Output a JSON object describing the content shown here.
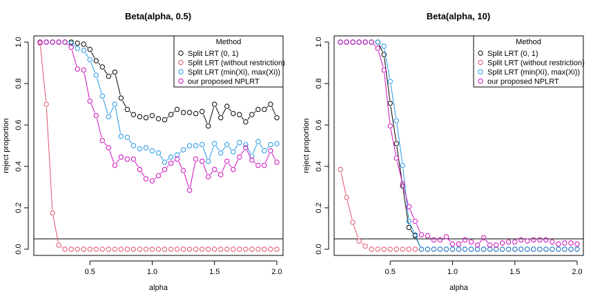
{
  "chart_data": [
    {
      "type": "scatter",
      "title": "Beta(alpha, 0.5)",
      "xlabel": "alpha",
      "ylabel": "reject proportion",
      "xlim": [
        0.05,
        2.05
      ],
      "ylim": [
        -0.03,
        1.03
      ],
      "xticks": [
        0.5,
        1.0,
        1.5,
        2.0
      ],
      "xtick_labels": [
        "0.5",
        "1.0",
        "1.5",
        "2.0"
      ],
      "yticks": [
        0.0,
        0.2,
        0.4,
        0.6,
        0.8,
        1.0
      ],
      "ytick_labels": [
        "0.0",
        "0.2",
        "0.4",
        "0.6",
        "0.8",
        "1.0"
      ],
      "hline": 0.05,
      "legend": {
        "title": "Method",
        "position": "top-right"
      },
      "x": [
        0.1,
        0.15,
        0.2,
        0.25,
        0.3,
        0.35,
        0.4,
        0.45,
        0.5,
        0.55,
        0.6,
        0.65,
        0.7,
        0.75,
        0.8,
        0.85,
        0.9,
        0.95,
        1.0,
        1.05,
        1.1,
        1.15,
        1.2,
        1.25,
        1.3,
        1.35,
        1.4,
        1.45,
        1.5,
        1.55,
        1.6,
        1.65,
        1.7,
        1.75,
        1.8,
        1.85,
        1.9,
        1.95,
        2.0
      ],
      "series": [
        {
          "name": "Split LRT (0, 1)",
          "color": "#000000",
          "values": [
            1.0,
            1.0,
            1.0,
            1.0,
            1.0,
            1.0,
            0.995,
            0.99,
            0.965,
            0.91,
            0.88,
            0.835,
            0.855,
            0.73,
            0.675,
            0.65,
            0.64,
            0.635,
            0.645,
            0.63,
            0.625,
            0.65,
            0.675,
            0.66,
            0.66,
            0.655,
            0.665,
            0.595,
            0.7,
            0.635,
            0.69,
            0.655,
            0.65,
            0.615,
            0.65,
            0.675,
            0.675,
            0.7,
            0.635
          ]
        },
        {
          "name": "Split LRT (without restriction)",
          "color": "#DF536B",
          "values": [
            0.995,
            0.7,
            0.175,
            0.02,
            0.0,
            0.0,
            0.0,
            0.0,
            0.0,
            0.0,
            0.0,
            0.0,
            0.0,
            0.0,
            0.0,
            0.0,
            0.0,
            0.0,
            0.0,
            0.0,
            0.0,
            0.0,
            0.0,
            0.0,
            0.0,
            0.0,
            0.0,
            0.0,
            0.0,
            0.0,
            0.0,
            0.0,
            0.0,
            0.0,
            0.0,
            0.0,
            0.0,
            0.0,
            0.0
          ]
        },
        {
          "name": "Split LRT (min(Xi), max(Xi))",
          "color": "#2297E6",
          "values": [
            1.0,
            1.0,
            1.0,
            1.0,
            1.0,
            0.995,
            0.97,
            0.96,
            0.915,
            0.84,
            0.74,
            0.64,
            0.7,
            0.545,
            0.54,
            0.5,
            0.485,
            0.49,
            0.475,
            0.465,
            0.42,
            0.445,
            0.455,
            0.48,
            0.5,
            0.5,
            0.505,
            0.425,
            0.51,
            0.465,
            0.505,
            0.47,
            0.515,
            0.505,
            0.45,
            0.52,
            0.475,
            0.505,
            0.51
          ]
        },
        {
          "name": "our proposed NPLRT",
          "color": "#CD0BBC",
          "values": [
            1.0,
            1.0,
            1.0,
            1.0,
            1.0,
            0.975,
            0.87,
            0.865,
            0.715,
            0.645,
            0.525,
            0.49,
            0.405,
            0.445,
            0.435,
            0.435,
            0.385,
            0.34,
            0.33,
            0.355,
            0.385,
            0.415,
            0.435,
            0.38,
            0.285,
            0.435,
            0.425,
            0.35,
            0.385,
            0.36,
            0.425,
            0.385,
            0.445,
            0.49,
            0.43,
            0.405,
            0.405,
            0.475,
            0.42
          ]
        }
      ]
    },
    {
      "type": "scatter",
      "title": "Beta(alpha, 10)",
      "xlabel": "alpha",
      "ylabel": "reject proportion",
      "xlim": [
        0.05,
        2.05
      ],
      "ylim": [
        -0.03,
        1.03
      ],
      "xticks": [
        0.5,
        1.0,
        1.5,
        2.0
      ],
      "xtick_labels": [
        "0.5",
        "1.0",
        "1.5",
        "2.0"
      ],
      "yticks": [
        0.0,
        0.2,
        0.4,
        0.6,
        0.8,
        1.0
      ],
      "ytick_labels": [
        "0.0",
        "0.2",
        "0.4",
        "0.6",
        "0.8",
        "1.0"
      ],
      "hline": 0.05,
      "legend": {
        "title": "Method",
        "position": "top-right"
      },
      "x": [
        0.1,
        0.15,
        0.2,
        0.25,
        0.3,
        0.35,
        0.4,
        0.45,
        0.5,
        0.55,
        0.6,
        0.65,
        0.7,
        0.75,
        0.8,
        0.85,
        0.9,
        0.95,
        1.0,
        1.05,
        1.1,
        1.15,
        1.2,
        1.25,
        1.3,
        1.35,
        1.4,
        1.45,
        1.5,
        1.55,
        1.6,
        1.65,
        1.7,
        1.75,
        1.8,
        1.85,
        1.9,
        1.95,
        2.0
      ],
      "series": [
        {
          "name": "Split LRT (0, 1)",
          "color": "#000000",
          "values": [
            1.0,
            1.0,
            1.0,
            1.0,
            1.0,
            1.0,
            1.0,
            0.94,
            0.705,
            0.51,
            0.305,
            0.105,
            0.065,
            0.0,
            0.0,
            0.0,
            0.0,
            0.0,
            0.0,
            0.0,
            0.0,
            0.0,
            0.0,
            0.0,
            0.0,
            0.0,
            0.0,
            0.0,
            0.0,
            0.0,
            0.0,
            0.0,
            0.0,
            0.0,
            0.0,
            0.0,
            0.0,
            0.0,
            0.0
          ]
        },
        {
          "name": "Split LRT (without restriction)",
          "color": "#DF536B",
          "values": [
            0.385,
            0.25,
            0.13,
            0.04,
            0.015,
            0.0,
            0.0,
            0.0,
            0.0,
            0.0,
            0.0,
            0.0,
            0.0,
            0.0,
            0.0,
            0.0,
            0.0,
            0.0,
            0.0,
            0.0,
            0.0,
            0.0,
            0.0,
            0.0,
            0.0,
            0.0,
            0.0,
            0.0,
            0.0,
            0.0,
            0.0,
            0.0,
            0.0,
            0.0,
            0.0,
            0.0,
            0.0,
            0.0,
            0.0
          ]
        },
        {
          "name": "Split LRT (min(Xi), max(Xi))",
          "color": "#2297E6",
          "values": [
            1.0,
            1.0,
            1.0,
            1.0,
            1.0,
            1.0,
            1.0,
            0.98,
            0.81,
            0.62,
            0.405,
            0.135,
            0.07,
            0.0,
            0.0,
            0.0,
            0.0,
            0.0,
            0.0,
            0.0,
            0.0,
            0.0,
            0.0,
            0.0,
            0.0,
            0.0,
            0.0,
            0.0,
            0.0,
            0.0,
            0.0,
            0.0,
            0.0,
            0.0,
            0.0,
            0.0,
            0.0,
            0.0,
            0.0
          ]
        },
        {
          "name": "our proposed NPLRT",
          "color": "#CD0BBC",
          "values": [
            1.0,
            1.0,
            1.0,
            1.0,
            1.0,
            1.0,
            0.97,
            0.865,
            0.595,
            0.44,
            0.315,
            0.205,
            0.135,
            0.07,
            0.065,
            0.045,
            0.045,
            0.06,
            0.025,
            0.025,
            0.045,
            0.035,
            0.02,
            0.055,
            0.02,
            0.02,
            0.03,
            0.035,
            0.035,
            0.045,
            0.04,
            0.045,
            0.045,
            0.045,
            0.035,
            0.025,
            0.03,
            0.03,
            0.025
          ]
        }
      ]
    }
  ]
}
